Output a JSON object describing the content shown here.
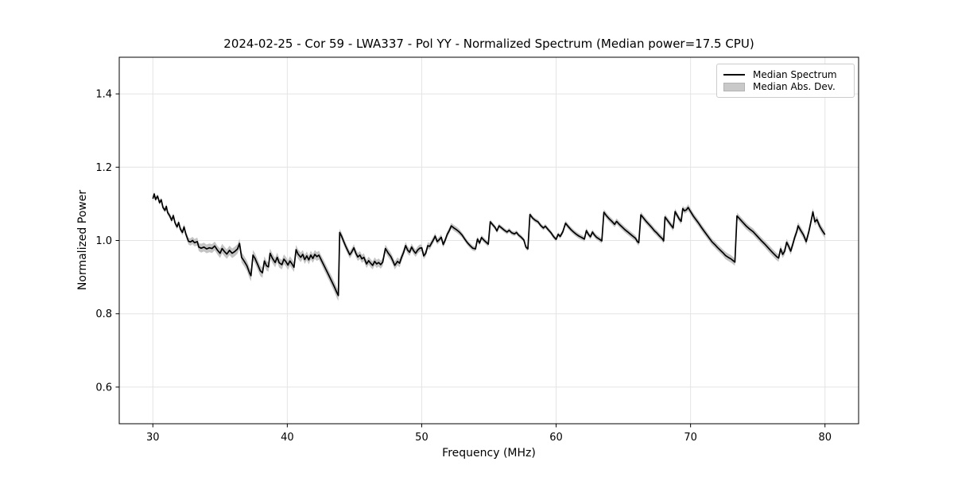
{
  "figure": {
    "title": "2024-02-25 - Cor 59 - LWA337 - Pol YY - Normalized Spectrum (Median power=17.5 CPU)"
  },
  "legend": {
    "items": [
      {
        "label": "Median Spectrum",
        "type": "line",
        "color": "#000000"
      },
      {
        "label": "Median Abs. Dev.",
        "type": "patch",
        "color": "#c9c9c9"
      }
    ]
  },
  "colors": {
    "line": "#000000",
    "band": "#c4c4c4",
    "grid": "#e4e4e4",
    "spine": "#000000",
    "legend_border": "#cccccc"
  },
  "chart_data": {
    "type": "line",
    "title": "2024-02-25 - Cor 59 - LWA337 - Pol YY - Normalized Spectrum (Median power=17.5 CPU)",
    "xlabel": "Frequency (MHz)",
    "ylabel": "Normalized Power",
    "xlim": [
      27.5,
      82.5
    ],
    "ylim": [
      0.5,
      1.5
    ],
    "x_ticks": [
      30,
      40,
      50,
      60,
      70,
      80
    ],
    "x_tick_labels": [
      "30",
      "40",
      "50",
      "60",
      "70",
      "80"
    ],
    "y_ticks": [
      0.6,
      0.8,
      1.0,
      1.2,
      1.4
    ],
    "y_tick_labels": [
      "0.6",
      "0.8",
      "1.0",
      "1.2",
      "1.4"
    ],
    "grid": true,
    "legend_position": "upper right",
    "series": [
      {
        "name": "Median Spectrum",
        "style": "line",
        "color": "#000000"
      },
      {
        "name": "Median Abs. Dev.",
        "style": "band",
        "color": "#c4c4c4"
      }
    ],
    "points_format": [
      "frequency_mhz",
      "normalized_power",
      "median_abs_dev"
    ],
    "points": [
      [
        30.0,
        1.114,
        0.006
      ],
      [
        30.1,
        1.127,
        0.006
      ],
      [
        30.2,
        1.112,
        0.006
      ],
      [
        30.35,
        1.121,
        0.006
      ],
      [
        30.5,
        1.103,
        0.006
      ],
      [
        30.62,
        1.111,
        0.006
      ],
      [
        30.75,
        1.09,
        0.006
      ],
      [
        30.9,
        1.082,
        0.006
      ],
      [
        31.0,
        1.093,
        0.007
      ],
      [
        31.1,
        1.076,
        0.007
      ],
      [
        31.25,
        1.068,
        0.007
      ],
      [
        31.4,
        1.055,
        0.007
      ],
      [
        31.52,
        1.068,
        0.007
      ],
      [
        31.65,
        1.048,
        0.007
      ],
      [
        31.8,
        1.037,
        0.007
      ],
      [
        31.92,
        1.049,
        0.007
      ],
      [
        32.05,
        1.031,
        0.007
      ],
      [
        32.2,
        1.022,
        0.008
      ],
      [
        32.32,
        1.037,
        0.008
      ],
      [
        32.45,
        1.018,
        0.008
      ],
      [
        32.55,
        1.008,
        0.009
      ],
      [
        32.65,
        0.998,
        0.009
      ],
      [
        32.8,
        0.996,
        0.01
      ],
      [
        32.95,
        1.0,
        0.01
      ],
      [
        33.1,
        0.994,
        0.01
      ],
      [
        33.3,
        0.997,
        0.011
      ],
      [
        33.42,
        0.982,
        0.011
      ],
      [
        33.6,
        0.979,
        0.012
      ],
      [
        33.8,
        0.982,
        0.012
      ],
      [
        34.0,
        0.977,
        0.012
      ],
      [
        34.2,
        0.98,
        0.012
      ],
      [
        34.4,
        0.978,
        0.012
      ],
      [
        34.6,
        0.985,
        0.012
      ],
      [
        34.8,
        0.974,
        0.012
      ],
      [
        35.0,
        0.965,
        0.013
      ],
      [
        35.15,
        0.978,
        0.013
      ],
      [
        35.3,
        0.971,
        0.013
      ],
      [
        35.5,
        0.963,
        0.013
      ],
      [
        35.7,
        0.973,
        0.013
      ],
      [
        35.9,
        0.965,
        0.013
      ],
      [
        36.1,
        0.97,
        0.013
      ],
      [
        36.3,
        0.977,
        0.013
      ],
      [
        36.45,
        0.992,
        0.013
      ],
      [
        36.6,
        0.954,
        0.014
      ],
      [
        36.8,
        0.943,
        0.014
      ],
      [
        37.0,
        0.931,
        0.014
      ],
      [
        37.2,
        0.911,
        0.015
      ],
      [
        37.3,
        0.904,
        0.015
      ],
      [
        37.45,
        0.96,
        0.014
      ],
      [
        37.6,
        0.951,
        0.014
      ],
      [
        37.8,
        0.934,
        0.014
      ],
      [
        38.0,
        0.917,
        0.014
      ],
      [
        38.15,
        0.912,
        0.014
      ],
      [
        38.3,
        0.944,
        0.013
      ],
      [
        38.45,
        0.931,
        0.013
      ],
      [
        38.6,
        0.928,
        0.013
      ],
      [
        38.72,
        0.965,
        0.013
      ],
      [
        38.9,
        0.951,
        0.013
      ],
      [
        39.1,
        0.94,
        0.013
      ],
      [
        39.25,
        0.954,
        0.013
      ],
      [
        39.4,
        0.939,
        0.013
      ],
      [
        39.6,
        0.934,
        0.013
      ],
      [
        39.75,
        0.949,
        0.013
      ],
      [
        39.9,
        0.942,
        0.013
      ],
      [
        40.05,
        0.933,
        0.013
      ],
      [
        40.2,
        0.944,
        0.013
      ],
      [
        40.35,
        0.936,
        0.013
      ],
      [
        40.5,
        0.927,
        0.013
      ],
      [
        40.65,
        0.975,
        0.013
      ],
      [
        40.8,
        0.963,
        0.013
      ],
      [
        41.0,
        0.954,
        0.013
      ],
      [
        41.15,
        0.962,
        0.012
      ],
      [
        41.3,
        0.948,
        0.012
      ],
      [
        41.45,
        0.958,
        0.012
      ],
      [
        41.6,
        0.947,
        0.012
      ],
      [
        41.75,
        0.96,
        0.012
      ],
      [
        41.9,
        0.951,
        0.012
      ],
      [
        42.05,
        0.962,
        0.012
      ],
      [
        42.2,
        0.956,
        0.012
      ],
      [
        42.35,
        0.96,
        0.012
      ],
      [
        42.5,
        0.949,
        0.012
      ],
      [
        42.7,
        0.934,
        0.013
      ],
      [
        42.9,
        0.919,
        0.013
      ],
      [
        43.1,
        0.904,
        0.013
      ],
      [
        43.3,
        0.889,
        0.014
      ],
      [
        43.5,
        0.874,
        0.014
      ],
      [
        43.7,
        0.857,
        0.015
      ],
      [
        43.8,
        0.85,
        0.015
      ],
      [
        43.9,
        1.022,
        0.01
      ],
      [
        44.05,
        1.011,
        0.01
      ],
      [
        44.2,
        0.997,
        0.01
      ],
      [
        44.35,
        0.984,
        0.01
      ],
      [
        44.5,
        0.972,
        0.01
      ],
      [
        44.65,
        0.961,
        0.01
      ],
      [
        44.8,
        0.969,
        0.01
      ],
      [
        44.95,
        0.98,
        0.01
      ],
      [
        45.1,
        0.965,
        0.01
      ],
      [
        45.25,
        0.955,
        0.011
      ],
      [
        45.4,
        0.96,
        0.011
      ],
      [
        45.55,
        0.95,
        0.011
      ],
      [
        45.7,
        0.954,
        0.011
      ],
      [
        45.9,
        0.936,
        0.011
      ],
      [
        46.05,
        0.945,
        0.011
      ],
      [
        46.2,
        0.938,
        0.011
      ],
      [
        46.35,
        0.932,
        0.011
      ],
      [
        46.5,
        0.943,
        0.011
      ],
      [
        46.65,
        0.936,
        0.011
      ],
      [
        46.8,
        0.94,
        0.011
      ],
      [
        46.95,
        0.934,
        0.011
      ],
      [
        47.1,
        0.941,
        0.011
      ],
      [
        47.3,
        0.978,
        0.011
      ],
      [
        47.5,
        0.966,
        0.011
      ],
      [
        47.7,
        0.956,
        0.011
      ],
      [
        47.85,
        0.945,
        0.011
      ],
      [
        48.0,
        0.932,
        0.011
      ],
      [
        48.2,
        0.943,
        0.011
      ],
      [
        48.35,
        0.938,
        0.011
      ],
      [
        48.5,
        0.954,
        0.011
      ],
      [
        48.65,
        0.967,
        0.01
      ],
      [
        48.8,
        0.986,
        0.01
      ],
      [
        48.95,
        0.974,
        0.01
      ],
      [
        49.1,
        0.968,
        0.01
      ],
      [
        49.25,
        0.982,
        0.01
      ],
      [
        49.4,
        0.972,
        0.01
      ],
      [
        49.55,
        0.965,
        0.01
      ],
      [
        49.7,
        0.974,
        0.01
      ],
      [
        49.85,
        0.979,
        0.01
      ],
      [
        50.0,
        0.98,
        0.009
      ],
      [
        50.15,
        0.958,
        0.009
      ],
      [
        50.3,
        0.965,
        0.009
      ],
      [
        50.45,
        0.986,
        0.009
      ],
      [
        50.6,
        0.984,
        0.009
      ],
      [
        50.75,
        0.994,
        0.009
      ],
      [
        50.9,
        1.004,
        0.009
      ],
      [
        51.0,
        1.012,
        0.008
      ],
      [
        51.15,
        0.997,
        0.008
      ],
      [
        51.3,
        1.002,
        0.008
      ],
      [
        51.45,
        1.009,
        0.008
      ],
      [
        51.6,
        0.989,
        0.008
      ],
      [
        51.75,
        1.001,
        0.008
      ],
      [
        51.9,
        1.017,
        0.008
      ],
      [
        52.05,
        1.027,
        0.008
      ],
      [
        52.2,
        1.04,
        0.008
      ],
      [
        52.4,
        1.034,
        0.008
      ],
      [
        52.6,
        1.029,
        0.008
      ],
      [
        52.8,
        1.023,
        0.008
      ],
      [
        53.0,
        1.015,
        0.007
      ],
      [
        53.2,
        1.004,
        0.007
      ],
      [
        53.4,
        0.994,
        0.007
      ],
      [
        53.6,
        0.986,
        0.007
      ],
      [
        53.8,
        0.979,
        0.007
      ],
      [
        54.0,
        0.977,
        0.007
      ],
      [
        54.15,
        1.004,
        0.007
      ],
      [
        54.3,
        0.993,
        0.007
      ],
      [
        54.45,
        1.008,
        0.007
      ],
      [
        54.6,
        1.002,
        0.007
      ],
      [
        54.8,
        0.995,
        0.007
      ],
      [
        54.95,
        0.99,
        0.007
      ],
      [
        55.1,
        1.051,
        0.006
      ],
      [
        55.3,
        1.042,
        0.006
      ],
      [
        55.45,
        1.036,
        0.006
      ],
      [
        55.6,
        1.026,
        0.006
      ],
      [
        55.75,
        1.04,
        0.006
      ],
      [
        55.95,
        1.034,
        0.006
      ],
      [
        56.15,
        1.028,
        0.006
      ],
      [
        56.35,
        1.023,
        0.006
      ],
      [
        56.5,
        1.028,
        0.006
      ],
      [
        56.7,
        1.021,
        0.006
      ],
      [
        56.9,
        1.018,
        0.006
      ],
      [
        57.05,
        1.022,
        0.006
      ],
      [
        57.2,
        1.015,
        0.006
      ],
      [
        57.4,
        1.009,
        0.006
      ],
      [
        57.6,
        1.001,
        0.006
      ],
      [
        57.75,
        0.982,
        0.006
      ],
      [
        57.9,
        0.977,
        0.006
      ],
      [
        58.05,
        1.071,
        0.006
      ],
      [
        58.25,
        1.061,
        0.006
      ],
      [
        58.45,
        1.055,
        0.006
      ],
      [
        58.65,
        1.051,
        0.006
      ],
      [
        58.85,
        1.041,
        0.006
      ],
      [
        59.05,
        1.034,
        0.006
      ],
      [
        59.2,
        1.039,
        0.006
      ],
      [
        59.4,
        1.03,
        0.006
      ],
      [
        59.6,
        1.022,
        0.006
      ],
      [
        59.8,
        1.011,
        0.006
      ],
      [
        60.0,
        1.003,
        0.006
      ],
      [
        60.15,
        1.017,
        0.006
      ],
      [
        60.3,
        1.011,
        0.006
      ],
      [
        60.5,
        1.024,
        0.007
      ],
      [
        60.7,
        1.047,
        0.007
      ],
      [
        60.9,
        1.038,
        0.007
      ],
      [
        61.1,
        1.03,
        0.007
      ],
      [
        61.3,
        1.023,
        0.007
      ],
      [
        61.5,
        1.017,
        0.007
      ],
      [
        61.7,
        1.012,
        0.007
      ],
      [
        61.9,
        1.008,
        0.007
      ],
      [
        62.1,
        1.004,
        0.007
      ],
      [
        62.25,
        1.027,
        0.007
      ],
      [
        62.4,
        1.017,
        0.007
      ],
      [
        62.55,
        1.01,
        0.007
      ],
      [
        62.7,
        1.023,
        0.007
      ],
      [
        62.85,
        1.015,
        0.007
      ],
      [
        63.0,
        1.009,
        0.007
      ],
      [
        63.2,
        1.004,
        0.007
      ],
      [
        63.4,
        0.999,
        0.007
      ],
      [
        63.55,
        1.077,
        0.008
      ],
      [
        63.75,
        1.067,
        0.008
      ],
      [
        63.95,
        1.059,
        0.008
      ],
      [
        64.15,
        1.052,
        0.008
      ],
      [
        64.35,
        1.044,
        0.008
      ],
      [
        64.5,
        1.052,
        0.008
      ],
      [
        64.7,
        1.044,
        0.008
      ],
      [
        64.9,
        1.037,
        0.008
      ],
      [
        65.1,
        1.03,
        0.008
      ],
      [
        65.3,
        1.024,
        0.008
      ],
      [
        65.5,
        1.018,
        0.008
      ],
      [
        65.7,
        1.012,
        0.008
      ],
      [
        65.9,
        1.006,
        0.008
      ],
      [
        66.05,
        0.997,
        0.008
      ],
      [
        66.15,
        0.994,
        0.008
      ],
      [
        66.3,
        1.07,
        0.008
      ],
      [
        66.5,
        1.061,
        0.008
      ],
      [
        66.7,
        1.052,
        0.008
      ],
      [
        66.9,
        1.044,
        0.008
      ],
      [
        67.1,
        1.036,
        0.008
      ],
      [
        67.3,
        1.027,
        0.008
      ],
      [
        67.5,
        1.02,
        0.008
      ],
      [
        67.7,
        1.012,
        0.008
      ],
      [
        67.9,
        1.005,
        0.008
      ],
      [
        68.0,
        0.999,
        0.008
      ],
      [
        68.1,
        1.064,
        0.008
      ],
      [
        68.3,
        1.054,
        0.008
      ],
      [
        68.5,
        1.044,
        0.008
      ],
      [
        68.7,
        1.034,
        0.008
      ],
      [
        68.85,
        1.079,
        0.008
      ],
      [
        69.0,
        1.069,
        0.008
      ],
      [
        69.15,
        1.059,
        0.008
      ],
      [
        69.3,
        1.052,
        0.008
      ],
      [
        69.42,
        1.087,
        0.008
      ],
      [
        69.55,
        1.081,
        0.008
      ],
      [
        69.7,
        1.084,
        0.008
      ],
      [
        69.82,
        1.09,
        0.009
      ],
      [
        70.0,
        1.079,
        0.009
      ],
      [
        70.2,
        1.067,
        0.009
      ],
      [
        70.4,
        1.057,
        0.009
      ],
      [
        70.6,
        1.047,
        0.009
      ],
      [
        70.8,
        1.036,
        0.009
      ],
      [
        71.0,
        1.026,
        0.009
      ],
      [
        71.2,
        1.016,
        0.009
      ],
      [
        71.4,
        1.006,
        0.009
      ],
      [
        71.6,
        0.996,
        0.009
      ],
      [
        71.8,
        0.989,
        0.009
      ],
      [
        72.0,
        0.981,
        0.009
      ],
      [
        72.2,
        0.974,
        0.009
      ],
      [
        72.4,
        0.967,
        0.009
      ],
      [
        72.6,
        0.959,
        0.01
      ],
      [
        72.8,
        0.954,
        0.01
      ],
      [
        73.0,
        0.95,
        0.01
      ],
      [
        73.2,
        0.944,
        0.01
      ],
      [
        73.3,
        0.941,
        0.01
      ],
      [
        73.45,
        1.067,
        0.009
      ],
      [
        73.65,
        1.059,
        0.009
      ],
      [
        73.9,
        1.049,
        0.009
      ],
      [
        74.15,
        1.039,
        0.009
      ],
      [
        74.4,
        1.031,
        0.009
      ],
      [
        74.65,
        1.024,
        0.009
      ],
      [
        74.9,
        1.014,
        0.009
      ],
      [
        75.2,
        1.002,
        0.009
      ],
      [
        75.5,
        0.991,
        0.009
      ],
      [
        75.8,
        0.979,
        0.01
      ],
      [
        76.1,
        0.967,
        0.01
      ],
      [
        76.4,
        0.956,
        0.01
      ],
      [
        76.55,
        0.952,
        0.01
      ],
      [
        76.7,
        0.977,
        0.01
      ],
      [
        76.85,
        0.962,
        0.01
      ],
      [
        77.0,
        0.971,
        0.01
      ],
      [
        77.15,
        0.995,
        0.01
      ],
      [
        77.3,
        0.984,
        0.01
      ],
      [
        77.45,
        0.971,
        0.01
      ],
      [
        77.6,
        0.989,
        0.01
      ],
      [
        77.75,
        1.009,
        0.01
      ],
      [
        77.9,
        1.024,
        0.01
      ],
      [
        78.0,
        1.04,
        0.01
      ],
      [
        78.2,
        1.027,
        0.01
      ],
      [
        78.4,
        1.015,
        0.01
      ],
      [
        78.6,
        0.997,
        0.01
      ],
      [
        78.8,
        1.024,
        0.01
      ],
      [
        79.0,
        1.059,
        0.01
      ],
      [
        79.1,
        1.078,
        0.01
      ],
      [
        79.25,
        1.051,
        0.01
      ],
      [
        79.4,
        1.057,
        0.01
      ],
      [
        79.6,
        1.039,
        0.01
      ],
      [
        79.8,
        1.027,
        0.01
      ],
      [
        80.0,
        1.016,
        0.01
      ]
    ]
  }
}
